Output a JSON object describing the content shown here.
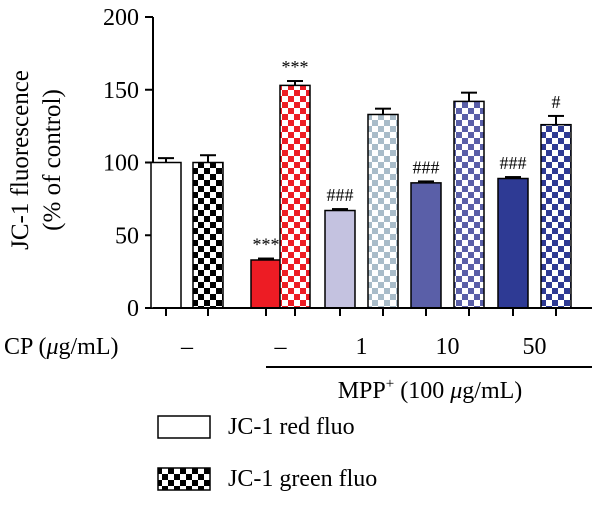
{
  "chart_data": {
    "type": "bar",
    "ylabel_line1": "JC-1 fluorescence",
    "ylabel_line2": "(% of control)",
    "ylim": [
      0,
      200
    ],
    "yticks": [
      "0",
      "50",
      "100",
      "150",
      "200"
    ],
    "ytick_values": [
      0,
      50,
      100,
      150,
      200
    ],
    "grid": false,
    "legend_position": "bottom-left",
    "row_label": "CP (μg/mL)",
    "row_label_main": "CP (",
    "row_label_mu": "μ",
    "row_label_rest": "g/mL)",
    "groups": [
      {
        "cp": "–",
        "red": 100,
        "red_err": 3,
        "green": 100,
        "green_err": 5,
        "red_sig": "",
        "green_sig": ""
      },
      {
        "cp": "–",
        "red": 33,
        "red_err": 1,
        "green": 153,
        "green_err": 3,
        "red_sig": "***",
        "green_sig": "***"
      },
      {
        "cp": "1",
        "red": 67,
        "red_err": 1,
        "green": 133,
        "green_err": 4,
        "red_sig": "###",
        "green_sig": ""
      },
      {
        "cp": "10",
        "red": 86,
        "red_err": 1,
        "green": 142,
        "green_err": 6,
        "red_sig": "###",
        "green_sig": ""
      },
      {
        "cp": "50",
        "red": 89,
        "red_err": 1,
        "green": 126,
        "green_err": 6,
        "red_sig": "###",
        "green_sig": "#"
      }
    ],
    "red_colors": [
      "#ffffff",
      "#ed1c24",
      "#c4c2e0",
      "#5a5fa8",
      "#2e3a94"
    ],
    "green_colors": [
      "#000000",
      "#ed1c24",
      "#a9bcc9",
      "#5a5fa8",
      "#2e3a94"
    ],
    "mpp_label": "MPP+ (100 μg/mL)",
    "mpp_main": "MPP",
    "mpp_sup": "+",
    "mpp_mid": " (100 ",
    "mpp_mu": "μ",
    "mpp_rest": "g/mL)",
    "legend": [
      {
        "name": "JC-1 red fluo",
        "pattern": "solid",
        "color": "#ffffff"
      },
      {
        "name": "JC-1 green fluo",
        "pattern": "checker",
        "color": "#000000"
      }
    ]
  }
}
